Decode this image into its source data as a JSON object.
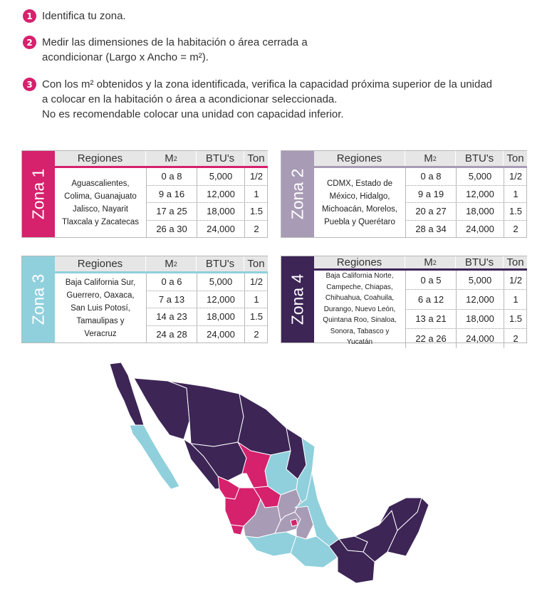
{
  "steps": [
    {
      "number": "1",
      "lines": [
        "Identifica tu zona."
      ]
    },
    {
      "number": "2",
      "lines": [
        "Medir las dimensiones de la habitación o área cerrada a",
        "acondicionar (Largo x Ancho = m²)."
      ]
    },
    {
      "number": "3",
      "lines": [
        "Con los m² obtenidos y la zona identificada, verifica la capacidad próxima superior de la unidad",
        "a colocar en la habitación o área a acondicionar seleccionada.",
        "No es recomendable colocar una unidad con capacidad inferior."
      ]
    }
  ],
  "colors": {
    "step_badge": "#d6216d",
    "zona1": "#d6216d",
    "zona2": "#a89bb5",
    "zona3": "#8fd0dc",
    "zona4": "#3d2556"
  },
  "headers": {
    "regiones": "Regiones",
    "m2": "M",
    "m2_sup": "2",
    "btu": "BTU's",
    "ton": "Ton"
  },
  "zones": [
    {
      "label": "Zona 1",
      "regions": [
        "Aguascalientes,",
        "Colima, Guanajuato",
        "Jalisco, Nayarit",
        "Tlaxcala y Zacatecas"
      ],
      "rows": [
        {
          "m2": "0 a 8",
          "btu": "5,000",
          "ton": "1/2"
        },
        {
          "m2": "9 a 16",
          "btu": "12,000",
          "ton": "1"
        },
        {
          "m2": "17 a 25",
          "btu": "18,000",
          "ton": "1.5"
        },
        {
          "m2": "26 a 30",
          "btu": "24,000",
          "ton": "2"
        }
      ]
    },
    {
      "label": "Zona 2",
      "regions": [
        "CDMX, Estado de",
        "México, Hidalgo,",
        "Michoacán, Morelos,",
        "Puebla y Querétaro"
      ],
      "rows": [
        {
          "m2": "0 a 8",
          "btu": "5,000",
          "ton": "1/2"
        },
        {
          "m2": "9 a 19",
          "btu": "12,000",
          "ton": "1"
        },
        {
          "m2": "20 a 27",
          "btu": "18,000",
          "ton": "1.5"
        },
        {
          "m2": "28 a 34",
          "btu": "24,000",
          "ton": "2"
        }
      ]
    },
    {
      "label": "Zona 3",
      "regions": [
        "Baja California Sur,",
        "Guerrero, Oaxaca,",
        "San Luis Potosí,",
        "Tamaulipas y",
        "Veracruz"
      ],
      "rows": [
        {
          "m2": "0 a 6",
          "btu": "5,000",
          "ton": "1/2"
        },
        {
          "m2": "7 a 13",
          "btu": "12,000",
          "ton": "1"
        },
        {
          "m2": "14 a 23",
          "btu": "18,000",
          "ton": "1.5"
        },
        {
          "m2": "24 a 28",
          "btu": "24,000",
          "ton": "2"
        }
      ]
    },
    {
      "label": "Zona 4",
      "regions": [
        "Baja California Norte,",
        "Campeche, Chiapas,",
        "Chihuahua, Coahuila,",
        "Durango, Nuevo León,",
        "Quintana Roo, Sinaloa,",
        "Sonora, Tabasco y Yucatán"
      ],
      "rows": [
        {
          "m2": "0 a 5",
          "btu": "5,000",
          "ton": "1/2"
        },
        {
          "m2": "6 a 12",
          "btu": "12,000",
          "ton": "1"
        },
        {
          "m2": "13 a 21",
          "btu": "18,000",
          "ton": "1.5"
        },
        {
          "m2": "22 a 26",
          "btu": "24,000",
          "ton": "2"
        }
      ]
    }
  ]
}
